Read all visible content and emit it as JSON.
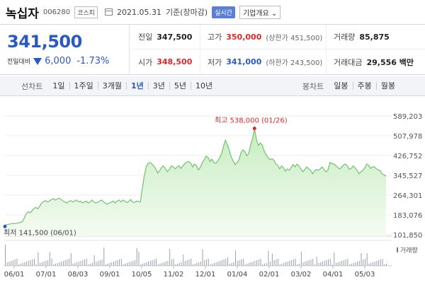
{
  "header": {
    "name": "녹십자",
    "code": "006280",
    "market": "코스피",
    "date": "2021.05.31",
    "basis": "기준(장마감)",
    "live_label": "실시간",
    "info_label": "기업개요 ⌄"
  },
  "quote": {
    "price": "341,500",
    "change_label": "전일대비",
    "change_amount": "6,000",
    "change_pct": "-1.73%"
  },
  "stats": {
    "row1": [
      {
        "label": "전일",
        "value": "347,500",
        "sub": ""
      },
      {
        "label": "고가",
        "value": "350,000",
        "sub": "(상한가 451,500)"
      },
      {
        "label": "거래량",
        "value": "85,875",
        "sub": ""
      }
    ],
    "row2": [
      {
        "label": "시가",
        "value": "348,500",
        "sub": ""
      },
      {
        "label": "저가",
        "value": "341,000",
        "sub": "(하한가 243,500)"
      },
      {
        "label": "거래대금",
        "value": "29,556 백만",
        "sub": ""
      }
    ]
  },
  "tabs": {
    "line_label": "선차트",
    "line_periods": [
      "1일",
      "1주일",
      "3개월",
      "1년",
      "3년",
      "5년",
      "10년"
    ],
    "selected": "1년",
    "candle_label": "봉차트",
    "candle_periods": [
      "일봉",
      "주봉",
      "월봉"
    ]
  },
  "chart_data": {
    "type": "area",
    "x_tick_labels": [
      "06/01",
      "07/01",
      "08/03",
      "09/01",
      "10/05",
      "11/02",
      "12/01",
      "01/04",
      "02/01",
      "03/02",
      "04/01",
      "05/03"
    ],
    "y_tick_labels": [
      "589,203",
      "507,978",
      "426,752",
      "345,527",
      "264,301",
      "183,076",
      "101,850"
    ],
    "ylim": [
      101850,
      589203
    ],
    "max_annotation": "최고 538,000 (01/26)",
    "min_annotation": "최저 141,500 (06/01)",
    "volume_label": "거래량",
    "colors": {
      "line": "#6fc36f",
      "fill_top": "#c8ecc0",
      "max": "#e12828",
      "min": "#2b59c3"
    },
    "series": [
      {
        "values": [
          141500,
          143000,
          145000,
          146000,
          148000,
          147000,
          149000,
          150000,
          152000,
          156000,
          170000,
          188000,
          196000,
          192000,
          200000,
          210000,
          214000,
          208000,
          220000,
          232000,
          238000,
          242000,
          236000,
          240000,
          246000,
          250000,
          244000,
          248000,
          252000,
          246000,
          240000,
          236000,
          232000,
          238000,
          242000,
          236000,
          240000,
          244000,
          236000,
          240000,
          232000,
          236000,
          240000,
          232000,
          236000,
          244000,
          236000,
          232000,
          236000,
          240000,
          244000,
          236000,
          230000,
          228000,
          232000,
          236000,
          240000,
          232000,
          240000,
          244000,
          236000,
          244000,
          240000,
          234000,
          238000,
          246000,
          236000,
          234000,
          240000,
          238000,
          236000,
          290000,
          342000,
          380000,
          395000,
          398000,
          392000,
          382000,
          372000,
          355000,
          365000,
          378000,
          384000,
          372000,
          360000,
          370000,
          384000,
          380000,
          372000,
          380000,
          384000,
          374000,
          384000,
          394000,
          400000,
          402000,
          396000,
          380000,
          392000,
          386000,
          368000,
          378000,
          398000,
          410000,
          424000,
          418000,
          402000,
          412000,
          398000,
          395000,
          404000,
          418000,
          434000,
          466000,
          490000,
          470000,
          448000,
          420000,
          404000,
          390000,
          398000,
          410000,
          438000,
          450000,
          444000,
          426000,
          434000,
          470000,
          496000,
          538000,
          492000,
          468000,
          478000,
          470000,
          446000,
          430000,
          418000,
          410000,
          414000,
          408000,
          392000,
          386000,
          372000,
          384000,
          376000,
          362000,
          372000,
          366000,
          378000,
          390000,
          380000,
          392000,
          384000,
          372000,
          360000,
          370000,
          380000,
          372000,
          366000,
          352000,
          362000,
          370000,
          366000,
          372000,
          380000,
          368000,
          360000,
          368000,
          398000,
          394000,
          392000,
          386000,
          378000,
          372000,
          378000,
          388000,
          392000,
          384000,
          370000,
          374000,
          384000,
          376000,
          366000,
          352000,
          360000,
          366000,
          376000,
          392000,
          386000,
          374000,
          380000,
          380000,
          372000,
          368000,
          364000,
          350000,
          347500,
          341500
        ]
      }
    ]
  }
}
